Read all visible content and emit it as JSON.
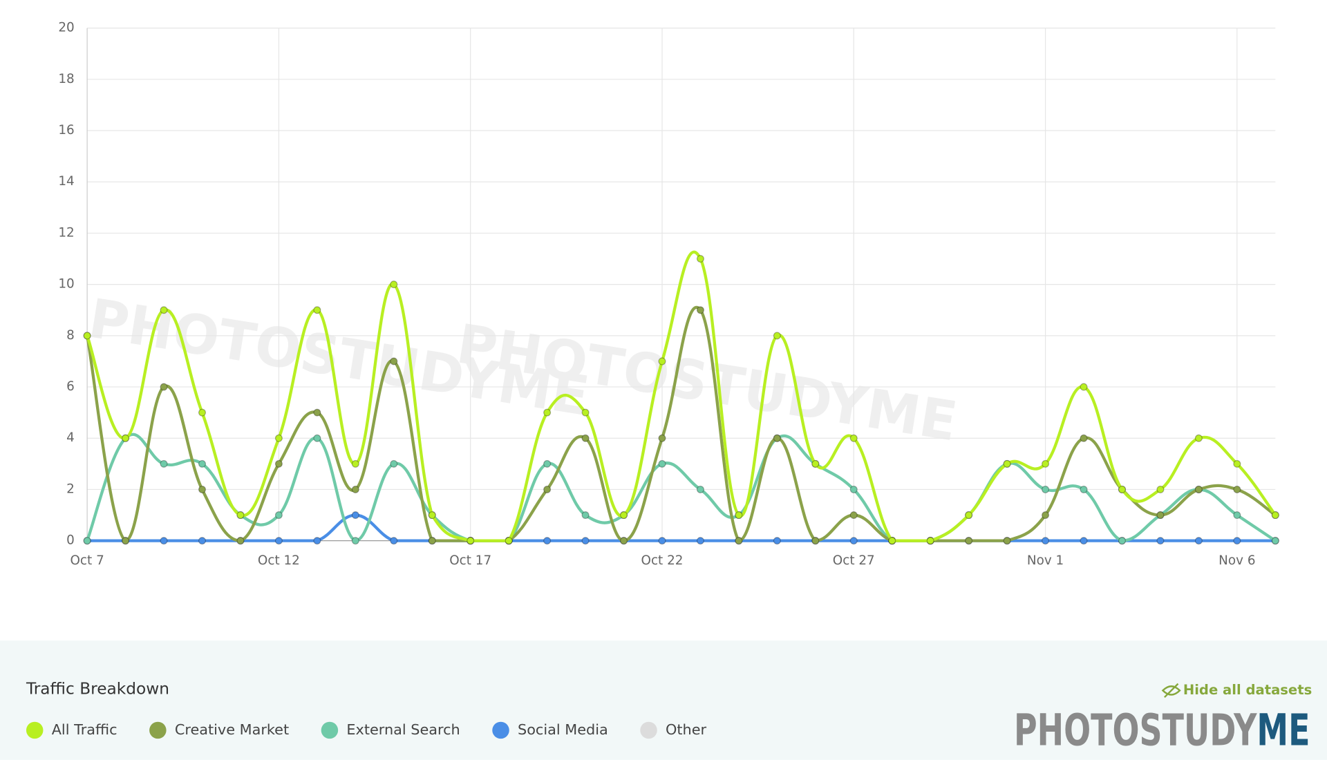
{
  "chart_data": {
    "type": "line",
    "categories": [
      "Oct 7",
      null,
      null,
      null,
      null,
      "Oct 12",
      null,
      null,
      null,
      null,
      "Oct 17",
      null,
      null,
      null,
      null,
      "Oct 22",
      null,
      null,
      null,
      null,
      "Oct 27",
      null,
      null,
      null,
      null,
      "Nov 1",
      null,
      null,
      null,
      null,
      "Nov 6",
      null
    ],
    "series": [
      {
        "name": "All Traffic",
        "color": "#b8ef22",
        "values": [
          8,
          4,
          9,
          5,
          1,
          4,
          9,
          3,
          10,
          1,
          0,
          0,
          5,
          5,
          1,
          7,
          11,
          1,
          8,
          3,
          4,
          0,
          0,
          1,
          3,
          3,
          6,
          2,
          2,
          4,
          3,
          1
        ]
      },
      {
        "name": "Creative Market",
        "color": "#8ba24a",
        "values": [
          8,
          0,
          6,
          2,
          0,
          3,
          5,
          2,
          7,
          0,
          0,
          0,
          2,
          4,
          0,
          4,
          9,
          0,
          4,
          0,
          1,
          0,
          0,
          0,
          0,
          1,
          4,
          2,
          1,
          2,
          2,
          1
        ]
      },
      {
        "name": "External Search",
        "color": "#6fcaa8",
        "values": [
          0,
          4,
          3,
          3,
          1,
          1,
          4,
          0,
          3,
          1,
          0,
          0,
          3,
          1,
          1,
          3,
          2,
          1,
          4,
          3,
          2,
          0,
          0,
          1,
          3,
          2,
          2,
          0,
          1,
          2,
          1,
          0
        ]
      },
      {
        "name": "Social Media",
        "color": "#4a8ee6",
        "values": [
          0,
          0,
          0,
          0,
          0,
          0,
          0,
          1,
          0,
          0,
          0,
          0,
          0,
          0,
          0,
          0,
          0,
          0,
          0,
          0,
          0,
          0,
          0,
          0,
          0,
          0,
          0,
          0,
          0,
          0,
          0,
          0
        ]
      },
      {
        "name": "Other",
        "color": "#dcdcdc",
        "hidden": true
      }
    ],
    "ylim": [
      0,
      20
    ],
    "yticks": [
      0,
      2,
      4,
      6,
      8,
      10,
      12,
      14,
      16,
      18,
      20
    ],
    "grid": true
  },
  "watermark": "PHOTOSTUDYME",
  "legend_title": "Traffic Breakdown",
  "hide_button": "Hide all datasets",
  "logo": {
    "part1": "PHOTOSTUDY",
    "part2": "ME"
  }
}
